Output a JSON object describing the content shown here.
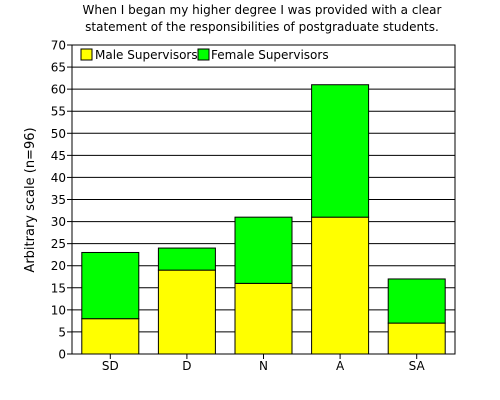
{
  "chart_data": {
    "type": "bar",
    "stacked": true,
    "title_lines": [
      "When I began my higher degree I was provided with a clear",
      "statement of the responsibilities of postgraduate students."
    ],
    "xlabel": "",
    "ylabel": "Arbitrary scale (n=96)",
    "categories": [
      "SD",
      "D",
      "N",
      "A",
      "SA"
    ],
    "series": [
      {
        "name": "Male Supervisors",
        "values": [
          8,
          19,
          16,
          31,
          7
        ],
        "color": "#ffff00"
      },
      {
        "name": "Female Supervisors",
        "values": [
          15,
          5,
          15,
          30,
          10
        ],
        "color": "#00ff00"
      }
    ],
    "totals": [
      23,
      24,
      31,
      61,
      17
    ],
    "ylim": [
      0,
      70
    ],
    "ytick_step": 5,
    "grid": true,
    "legend_position": "top-left"
  }
}
